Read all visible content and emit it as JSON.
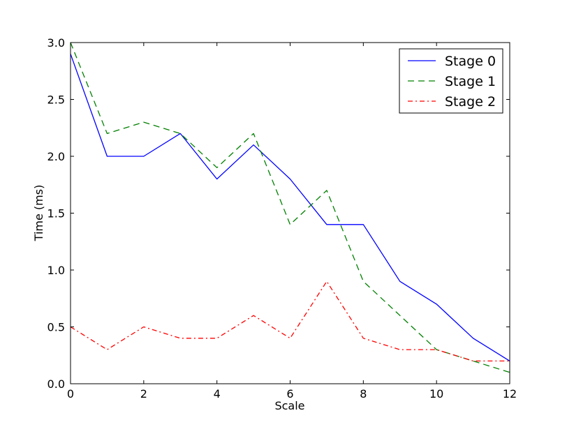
{
  "chart_data": {
    "type": "line",
    "title": "",
    "xlabel": "Scale",
    "ylabel": "Time (ms)",
    "xlim": [
      0,
      12
    ],
    "ylim": [
      0,
      3.0
    ],
    "grid": false,
    "legend_position": "top-right",
    "x_ticks": [
      0,
      2,
      4,
      6,
      8,
      10,
      12
    ],
    "x_tick_labels": [
      "0",
      "2",
      "4",
      "6",
      "8",
      "10",
      "12"
    ],
    "y_ticks": [
      0,
      0.5,
      1.0,
      1.5,
      2.0,
      2.5,
      3.0
    ],
    "y_tick_labels": [
      "0.0",
      "0.5",
      "1.0",
      "1.5",
      "2.0",
      "2.5",
      "3.0"
    ],
    "x": [
      0,
      1,
      2,
      3,
      4,
      5,
      6,
      7,
      8,
      9,
      10,
      11,
      12
    ],
    "series": [
      {
        "name": "Stage 0",
        "color": "#0000ff",
        "linestyle": "solid",
        "values": [
          2.9,
          2.0,
          2.0,
          2.2,
          1.8,
          2.1,
          1.8,
          1.4,
          1.4,
          0.9,
          0.7,
          0.4,
          0.2
        ]
      },
      {
        "name": "Stage 1",
        "color": "#008000",
        "linestyle": "dashed",
        "values": [
          3.0,
          2.2,
          2.3,
          2.2,
          1.9,
          2.2,
          1.4,
          1.7,
          0.9,
          0.6,
          0.3,
          0.2,
          0.1
        ]
      },
      {
        "name": "Stage 2",
        "color": "#ff0000",
        "linestyle": "dashdot",
        "values": [
          0.5,
          0.3,
          0.5,
          0.4,
          0.4,
          0.6,
          0.4,
          0.9,
          0.4,
          0.3,
          0.3,
          0.2,
          0.2
        ]
      }
    ]
  }
}
